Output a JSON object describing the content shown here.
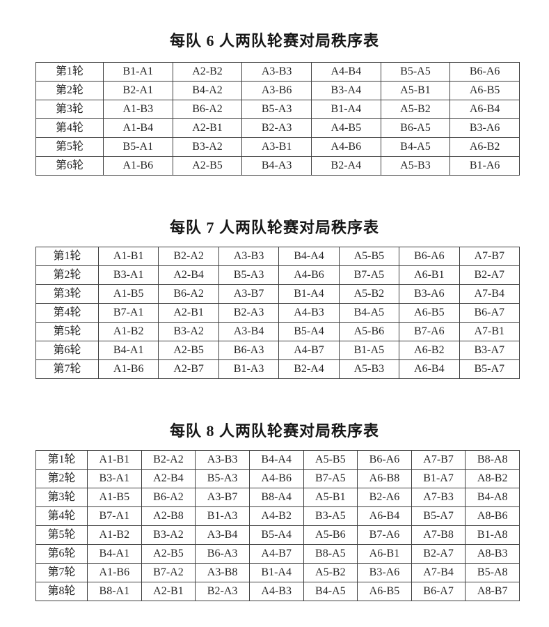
{
  "page": {
    "background": "#ffffff",
    "text_color": "#1f1f1f",
    "border_color": "#3f3f3f"
  },
  "tables": [
    {
      "title": "每队 6 人两队轮赛对局秩序表",
      "rows": [
        {
          "label": "第1轮",
          "cells": [
            "B1-A1",
            "A2-B2",
            "A3-B3",
            "A4-B4",
            "B5-A5",
            "B6-A6"
          ]
        },
        {
          "label": "第2轮",
          "cells": [
            "B2-A1",
            "B4-A2",
            "A3-B6",
            "B3-A4",
            "A5-B1",
            "A6-B5"
          ]
        },
        {
          "label": "第3轮",
          "cells": [
            "A1-B3",
            "B6-A2",
            "B5-A3",
            "B1-A4",
            "A5-B2",
            "A6-B4"
          ]
        },
        {
          "label": "第4轮",
          "cells": [
            "A1-B4",
            "A2-B1",
            "B2-A3",
            "A4-B5",
            "B6-A5",
            "B3-A6"
          ]
        },
        {
          "label": "第5轮",
          "cells": [
            "B5-A1",
            "B3-A2",
            "A3-B1",
            "A4-B6",
            "B4-A5",
            "A6-B2"
          ]
        },
        {
          "label": "第6轮",
          "cells": [
            "A1-B6",
            "A2-B5",
            "B4-A3",
            "B2-A4",
            "A5-B3",
            "B1-A6"
          ]
        }
      ]
    },
    {
      "title": "每队 7 人两队轮赛对局秩序表",
      "rows": [
        {
          "label": "第1轮",
          "cells": [
            "A1-B1",
            "B2-A2",
            "A3-B3",
            "B4-A4",
            "A5-B5",
            "B6-A6",
            "A7-B7"
          ]
        },
        {
          "label": "第2轮",
          "cells": [
            "B3-A1",
            "A2-B4",
            "B5-A3",
            "A4-B6",
            "B7-A5",
            "A6-B1",
            "B2-A7"
          ]
        },
        {
          "label": "第3轮",
          "cells": [
            "A1-B5",
            "B6-A2",
            "A3-B7",
            "B1-A4",
            "A5-B2",
            "B3-A6",
            "A7-B4"
          ]
        },
        {
          "label": "第4轮",
          "cells": [
            "B7-A1",
            "A2-B1",
            "B2-A3",
            "A4-B3",
            "B4-A5",
            "A6-B5",
            "B6-A7"
          ]
        },
        {
          "label": "第5轮",
          "cells": [
            "A1-B2",
            "B3-A2",
            "A3-B4",
            "B5-A4",
            "A5-B6",
            "B7-A6",
            "A7-B1"
          ]
        },
        {
          "label": "第6轮",
          "cells": [
            "B4-A1",
            "A2-B5",
            "B6-A3",
            "A4-B7",
            "B1-A5",
            "A6-B2",
            "B3-A7"
          ]
        },
        {
          "label": "第7轮",
          "cells": [
            "A1-B6",
            "A2-B7",
            "B1-A3",
            "B2-A4",
            "A5-B3",
            "A6-B4",
            "B5-A7"
          ]
        }
      ]
    },
    {
      "title": "每队 8 人两队轮赛对局秩序表",
      "rows": [
        {
          "label": "第1轮",
          "cells": [
            "A1-B1",
            "B2-A2",
            "A3-B3",
            "B4-A4",
            "A5-B5",
            "B6-A6",
            "A7-B7",
            "B8-A8"
          ]
        },
        {
          "label": "第2轮",
          "cells": [
            "B3-A1",
            "A2-B4",
            "B5-A3",
            "A4-B6",
            "B7-A5",
            "A6-B8",
            "B1-A7",
            "A8-B2"
          ]
        },
        {
          "label": "第3轮",
          "cells": [
            "A1-B5",
            "B6-A2",
            "A3-B7",
            "B8-A4",
            "A5-B1",
            "B2-A6",
            "A7-B3",
            "B4-A8"
          ]
        },
        {
          "label": "第4轮",
          "cells": [
            "B7-A1",
            "A2-B8",
            "B1-A3",
            "A4-B2",
            "B3-A5",
            "A6-B4",
            "B5-A7",
            "A8-B6"
          ]
        },
        {
          "label": "第5轮",
          "cells": [
            "A1-B2",
            "B3-A2",
            "A3-B4",
            "B5-A4",
            "A5-B6",
            "B7-A6",
            "A7-B8",
            "B1-A8"
          ]
        },
        {
          "label": "第6轮",
          "cells": [
            "B4-A1",
            "A2-B5",
            "B6-A3",
            "A4-B7",
            "B8-A5",
            "A6-B1",
            "B2-A7",
            "A8-B3"
          ]
        },
        {
          "label": "第7轮",
          "cells": [
            "A1-B6",
            "B7-A2",
            "A3-B8",
            "B1-A4",
            "A5-B2",
            "B3-A6",
            "A7-B4",
            "B5-A8"
          ]
        },
        {
          "label": "第8轮",
          "cells": [
            "B8-A1",
            "A2-B1",
            "B2-A3",
            "A4-B3",
            "B4-A5",
            "A6-B5",
            "B6-A7",
            "A8-B7"
          ]
        }
      ]
    }
  ]
}
